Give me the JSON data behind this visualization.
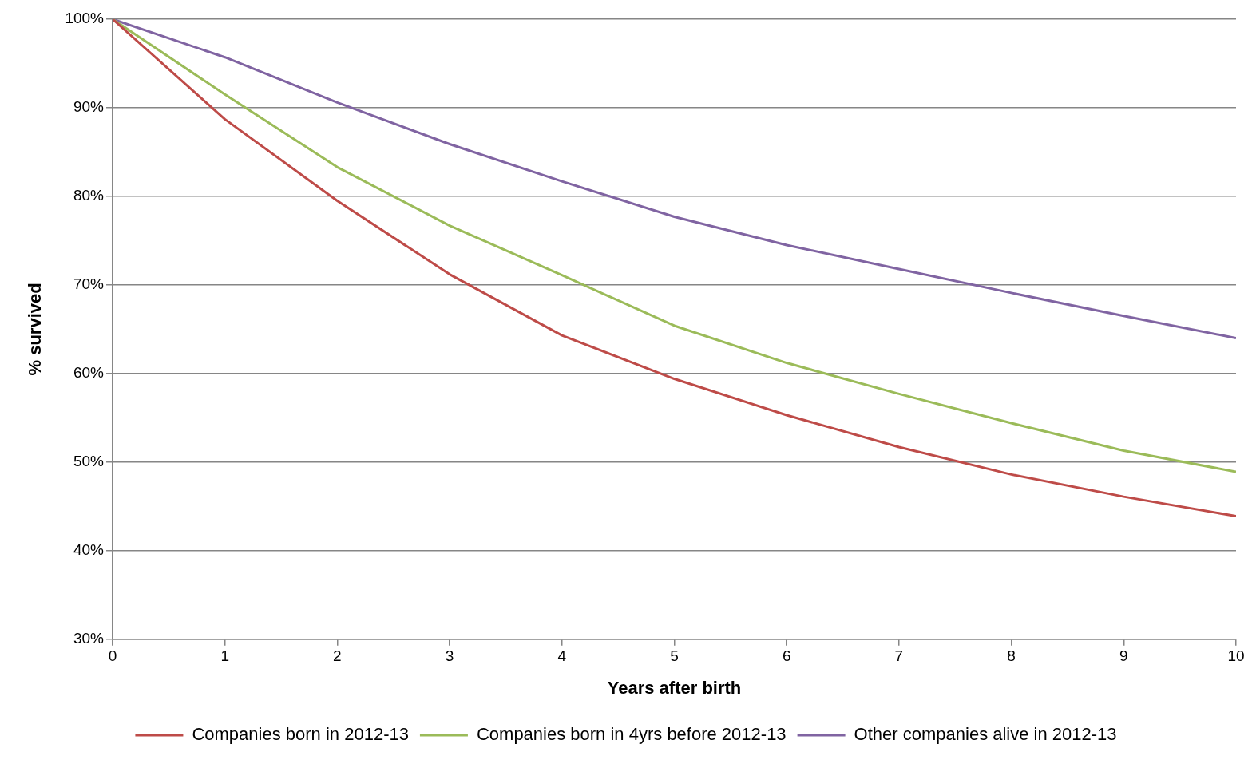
{
  "chart_data": {
    "type": "line",
    "xlabel": "Years after birth",
    "ylabel": "% survived",
    "x": [
      0,
      1,
      2,
      3,
      4,
      5,
      6,
      7,
      8,
      9,
      10
    ],
    "series": [
      {
        "name": "Companies born in 2012-13",
        "color": "#be4b48",
        "values": [
          100,
          88.7,
          79.5,
          71.2,
          64.3,
          59.4,
          55.3,
          51.7,
          48.6,
          46.1,
          43.9
        ]
      },
      {
        "name": "Companies born in 4yrs before 2012-13",
        "color": "#9bbb59",
        "values": [
          100,
          91.5,
          83.3,
          76.7,
          71.1,
          65.4,
          61.2,
          57.7,
          54.4,
          51.3,
          48.9
        ]
      },
      {
        "name": "Other companies alive in 2012-13",
        "color": "#8064a2",
        "values": [
          100,
          95.7,
          90.6,
          85.9,
          81.7,
          77.7,
          74.5,
          71.8,
          69.1,
          66.5,
          64.0
        ]
      }
    ],
    "xlim": [
      0,
      10
    ],
    "xticks": [
      0,
      1,
      2,
      3,
      4,
      5,
      6,
      7,
      8,
      9,
      10
    ],
    "ylim": [
      30,
      100
    ],
    "yticks": [
      {
        "value": 30,
        "label": "30%"
      },
      {
        "value": 40,
        "label": "40%"
      },
      {
        "value": 50,
        "label": "50%"
      },
      {
        "value": 60,
        "label": "60%"
      },
      {
        "value": 70,
        "label": "70%"
      },
      {
        "value": 80,
        "label": "80%"
      },
      {
        "value": 90,
        "label": "90%"
      },
      {
        "value": 100,
        "label": "100%"
      }
    ],
    "grid": "y",
    "legend": "bottom",
    "marker": "none",
    "line_style": "solid"
  }
}
